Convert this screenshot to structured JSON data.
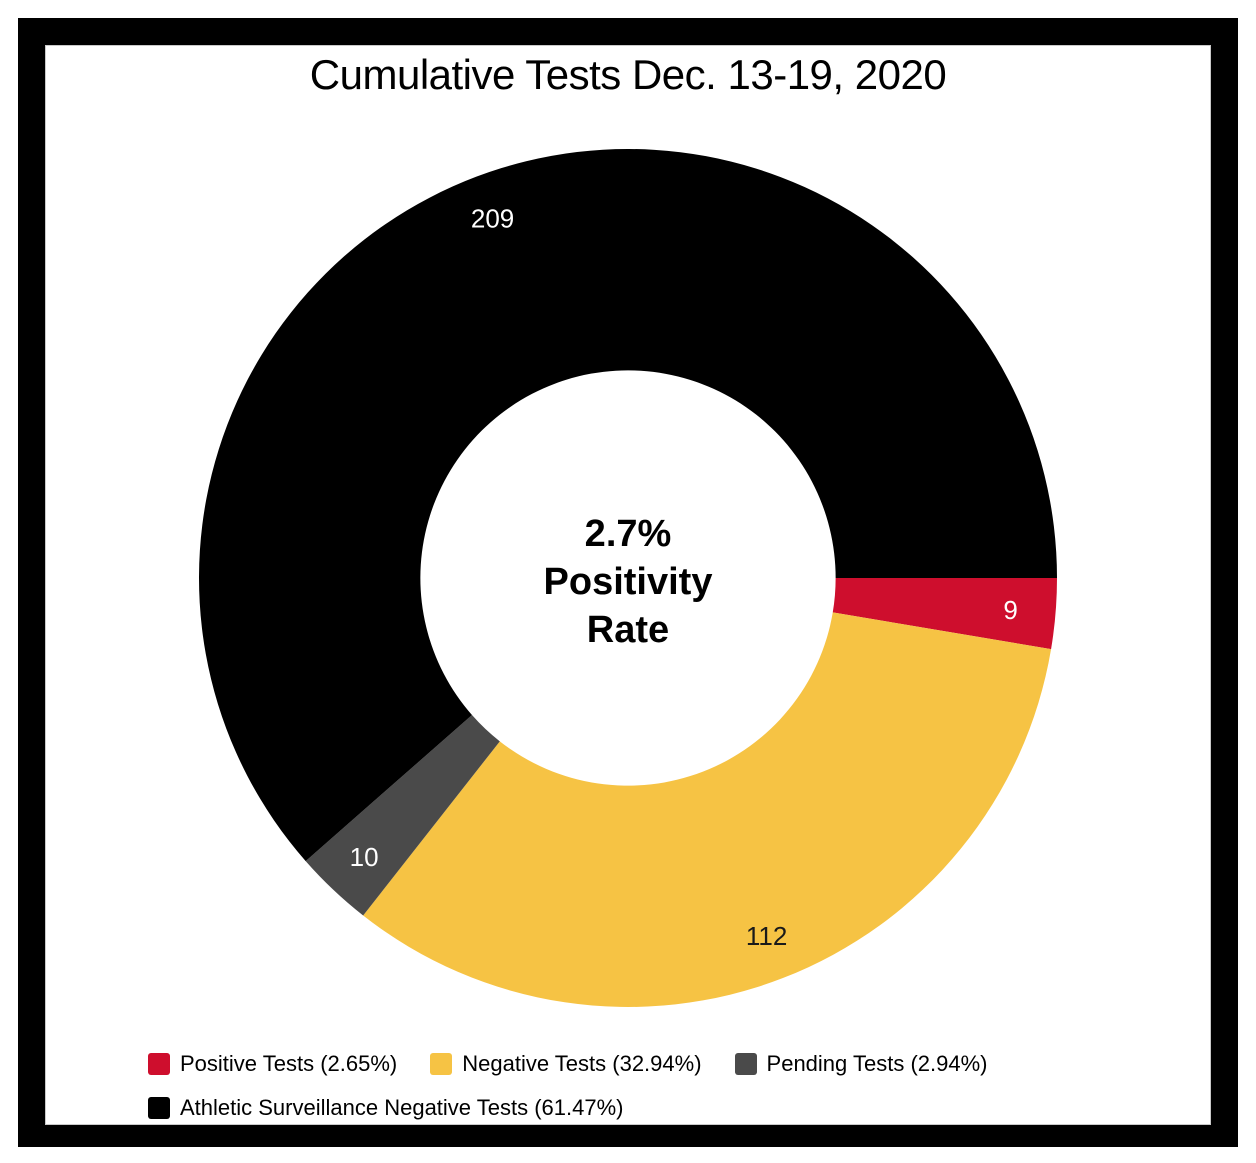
{
  "chart_data": {
    "type": "pie",
    "subtype": "donut",
    "title": "Cumulative Tests Dec. 13-19, 2020",
    "center_label": {
      "line1": "2.7%",
      "line2": "Positivity",
      "line3": "Rate"
    },
    "start_angle_deg": 90,
    "inner_radius_ratio": 0.484,
    "value_label_radius_ratio": 0.895,
    "legend_position": "bottom-left",
    "grid": "off",
    "segments": [
      {
        "id": "positive-tests",
        "name": "Positive Tests",
        "legend_label": "Positive Tests (2.65%)",
        "pct": 2.65,
        "value": 9,
        "color": "#ce0e2d",
        "value_label_color": "#ffffff"
      },
      {
        "id": "negative-tests",
        "name": "Negative Tests",
        "legend_label": "Negative Tests (32.94%)",
        "pct": 32.94,
        "value": 112,
        "color": "#f6c344",
        "value_label_color": "#1a1a1a"
      },
      {
        "id": "pending-tests",
        "name": "Pending Tests",
        "legend_label": "Pending Tests (2.94%)",
        "pct": 2.94,
        "value": 10,
        "color": "#4a4a4a",
        "value_label_color": "#ffffff"
      },
      {
        "id": "athletic-surveillance-negative-tests",
        "name": "Athletic Surveillance Negative Tests",
        "legend_label": "Athletic Surveillance Negative Tests (61.47%)",
        "pct": 61.47,
        "value": 209,
        "color": "#000000",
        "value_label_color": "#ffffff"
      }
    ]
  },
  "frame": {
    "border_color": "#000000",
    "background": "#ffffff"
  }
}
